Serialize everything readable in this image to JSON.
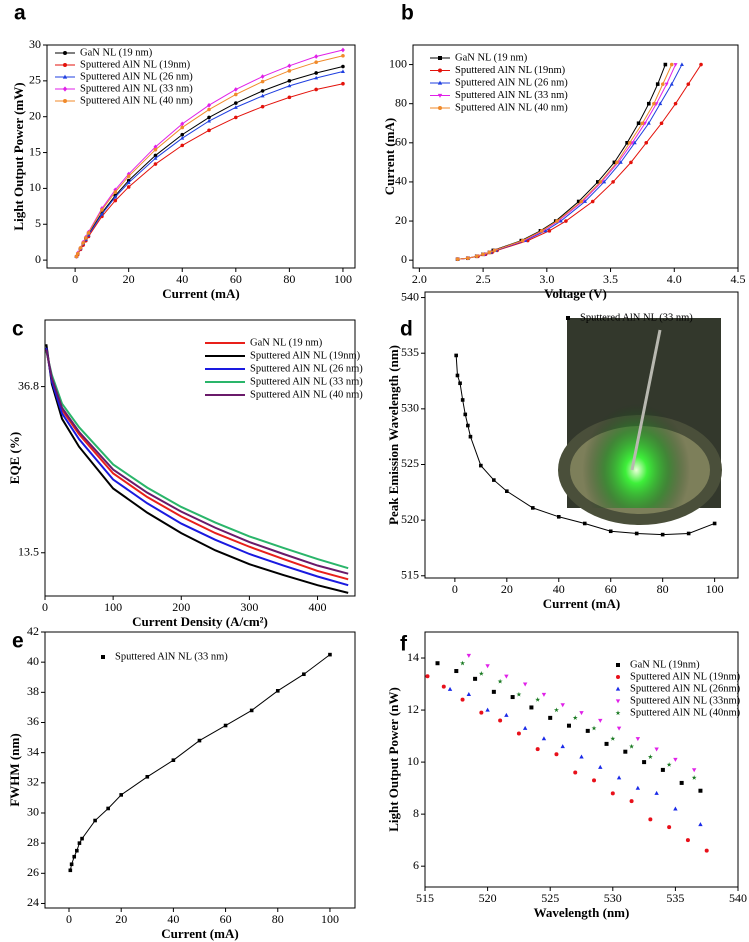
{
  "chart_data": [
    {
      "type": "line",
      "label": "a",
      "xlabel": "Current (mA)",
      "ylabel": "Light Output Power (mW)",
      "x": [
        0.5,
        1,
        2,
        3,
        4,
        5,
        10,
        15,
        20,
        30,
        40,
        50,
        60,
        70,
        80,
        90,
        100
      ],
      "series": [
        {
          "name": "GaN NL (19 nm)",
          "color": "#000000",
          "marker": "circle",
          "values": [
            0.5,
            0.9,
            1.6,
            2.3,
            3.0,
            3.6,
            6.6,
            9.0,
            11.1,
            14.6,
            17.5,
            19.9,
            21.9,
            23.6,
            25.0,
            26.1,
            27.0
          ]
        },
        {
          "name": "Sputtered AlN NL (19nm)",
          "color": "#e3120b",
          "marker": "circle",
          "values": [
            0.5,
            0.8,
            1.5,
            2.1,
            2.7,
            3.3,
            6.1,
            8.3,
            10.2,
            13.4,
            16.0,
            18.1,
            19.9,
            21.4,
            22.7,
            23.8,
            24.6
          ]
        },
        {
          "name": "Sputtered AlN NL (26 nm)",
          "color": "#1f3fe0",
          "marker": "triangle-up",
          "values": [
            0.5,
            0.9,
            1.6,
            2.3,
            2.9,
            3.5,
            6.4,
            8.8,
            10.8,
            14.2,
            17.0,
            19.4,
            21.3,
            22.9,
            24.3,
            25.4,
            26.3
          ]
        },
        {
          "name": "Sputtered AlN NL (33 nm)",
          "color": "#e020e8",
          "marker": "diamond",
          "values": [
            0.5,
            1.0,
            1.7,
            2.5,
            3.2,
            3.9,
            7.2,
            9.8,
            12.0,
            15.8,
            19.0,
            21.6,
            23.8,
            25.6,
            27.1,
            28.4,
            29.3
          ]
        },
        {
          "name": "Sputtered AlN NL (40 nm)",
          "color": "#f08a2a",
          "marker": "circle",
          "values": [
            0.5,
            0.9,
            1.7,
            2.4,
            3.1,
            3.8,
            7.0,
            9.5,
            11.7,
            15.4,
            18.5,
            21.0,
            23.1,
            24.9,
            26.4,
            27.6,
            28.5
          ]
        }
      ],
      "xlim": [
        -10.5,
        104.5
      ],
      "ylim": [
        -1.1,
        30
      ],
      "xticks": [
        0,
        20,
        40,
        60,
        80,
        100
      ],
      "yticks": [
        0,
        5,
        10,
        15,
        20,
        25,
        30
      ],
      "legend": "upper left"
    },
    {
      "type": "line",
      "label": "b",
      "xlabel": "Voltage (V)",
      "ylabel": "Current (mA)",
      "series": [
        {
          "name": "GaN NL (19 nm)",
          "color": "#000000",
          "marker": "square",
          "x": [
            2.3,
            2.38,
            2.45,
            2.5,
            2.55,
            2.58,
            2.8,
            2.95,
            3.07,
            3.25,
            3.4,
            3.53,
            3.63,
            3.72,
            3.8,
            3.87,
            3.93
          ],
          "values": [
            0.5,
            1,
            2,
            3,
            4,
            5,
            10,
            15,
            20,
            30,
            40,
            50,
            60,
            70,
            80,
            90,
            100
          ]
        },
        {
          "name": "Sputtered AlN NL (19nm)",
          "color": "#e3120b",
          "marker": "circle",
          "x": [
            2.3,
            2.38,
            2.46,
            2.52,
            2.57,
            2.61,
            2.85,
            3.02,
            3.15,
            3.36,
            3.52,
            3.66,
            3.78,
            3.9,
            4.01,
            4.11,
            4.21
          ],
          "values": [
            0.5,
            1,
            2,
            3,
            4,
            5,
            10,
            15,
            20,
            30,
            40,
            50,
            60,
            70,
            80,
            90,
            100
          ]
        },
        {
          "name": "Sputtered AlN NL (26 nm)",
          "color": "#1f3fe0",
          "marker": "triangle-up",
          "x": [
            2.3,
            2.38,
            2.45,
            2.51,
            2.56,
            2.6,
            2.83,
            2.99,
            3.11,
            3.3,
            3.45,
            3.58,
            3.69,
            3.8,
            3.89,
            3.98,
            4.06
          ],
          "values": [
            0.5,
            1,
            2,
            3,
            4,
            5,
            10,
            15,
            20,
            30,
            40,
            50,
            60,
            70,
            80,
            90,
            100
          ]
        },
        {
          "name": "Sputtered AlN NL (33 nm)",
          "color": "#e020e8",
          "marker": "triangle-down",
          "x": [
            2.3,
            2.38,
            2.45,
            2.51,
            2.55,
            2.59,
            2.82,
            2.97,
            3.09,
            3.28,
            3.43,
            3.56,
            3.67,
            3.77,
            3.86,
            3.94,
            4.01
          ],
          "values": [
            0.5,
            1,
            2,
            3,
            4,
            5,
            10,
            15,
            20,
            30,
            40,
            50,
            60,
            70,
            80,
            90,
            100
          ]
        },
        {
          "name": "Sputtered AlN NL (40 nm)",
          "color": "#f08a2a",
          "marker": "circle",
          "x": [
            2.3,
            2.38,
            2.45,
            2.5,
            2.55,
            2.59,
            2.81,
            2.96,
            3.08,
            3.27,
            3.42,
            3.55,
            3.65,
            3.75,
            3.84,
            3.91,
            3.98
          ],
          "values": [
            0.5,
            1,
            2,
            3,
            4,
            5,
            10,
            15,
            20,
            30,
            40,
            50,
            60,
            70,
            80,
            90,
            100
          ]
        }
      ],
      "xlim": [
        1.95,
        4.5
      ],
      "ylim": [
        -4,
        110
      ],
      "xticks": [
        {
          "value": 2,
          "label": "2.0"
        },
        2.5,
        {
          "value": 3,
          "label": "3.0"
        },
        3.5,
        {
          "value": 4,
          "label": "4.0"
        },
        4.5
      ],
      "yticks": [
        0,
        20,
        40,
        60,
        80,
        100
      ],
      "legend": "upper left"
    },
    {
      "type": "line",
      "label": "c",
      "xlabel": "Current Density (A/cm²)",
      "ylabel": "EQE (%)",
      "log": true,
      "x": [
        2,
        10,
        25,
        50,
        100,
        150,
        200,
        250,
        300,
        350,
        400,
        445
      ],
      "series": [
        {
          "name": "GaN NL (19 nm)",
          "color": "#e8201a",
          "values": [
            46.0,
            38.5,
            32.0,
            27.6,
            21.8,
            18.9,
            16.8,
            15.2,
            14.0,
            13.0,
            12.1,
            11.5
          ]
        },
        {
          "name": "Sputtered AlN NL (19nm)",
          "color": "#000000",
          "values": [
            47.5,
            37.4,
            30.3,
            25.6,
            19.9,
            17.2,
            15.2,
            13.7,
            12.6,
            11.8,
            11.1,
            10.6
          ]
        },
        {
          "name": "Sputtered AlN NL (26 nm)",
          "color": "#1a1ae0",
          "values": [
            46.5,
            38.0,
            31.3,
            26.8,
            21.0,
            18.2,
            16.1,
            14.6,
            13.4,
            12.5,
            11.7,
            11.1
          ]
        },
        {
          "name": "Sputtered AlN NL (33 nm)",
          "color": "#2ab56a",
          "values": [
            45.5,
            39.5,
            33.2,
            28.8,
            23.0,
            20.0,
            17.8,
            16.2,
            14.9,
            13.9,
            13.0,
            12.3
          ]
        },
        {
          "name": "Sputtered AlN NL (40 nm)",
          "color": "#6a1a6a",
          "values": [
            46.0,
            38.8,
            32.4,
            28.0,
            22.3,
            19.4,
            17.3,
            15.7,
            14.4,
            13.4,
            12.5,
            11.9
          ]
        }
      ],
      "xlim": [
        0,
        455
      ],
      "ylim": [
        10.4,
        55
      ],
      "xticks": [
        0,
        100,
        200,
        300,
        400
      ],
      "yticks": [
        13.5,
        36.8
      ],
      "legend": "upper right"
    },
    {
      "type": "line",
      "label": "d",
      "xlabel": "Current (mA)",
      "ylabel": "Peak Emission Wavelength (nm)",
      "x": [
        0.5,
        1,
        2,
        3,
        4,
        5,
        6,
        10,
        15,
        20,
        30,
        40,
        50,
        60,
        70,
        80,
        90,
        100
      ],
      "series": [
        {
          "name": "Sputtered AlN NL (33 nm)",
          "color": "#000000",
          "marker": "square",
          "values": [
            534.8,
            533.0,
            532.3,
            530.8,
            529.5,
            528.5,
            527.5,
            524.9,
            523.6,
            522.6,
            521.1,
            520.3,
            519.7,
            519.0,
            518.8,
            518.7,
            518.8,
            519.7
          ]
        }
      ],
      "xlim": [
        -11.5,
        109
      ],
      "ylim": [
        514.8,
        540.5
      ],
      "xticks": [
        0,
        20,
        40,
        60,
        80,
        100
      ],
      "yticks": [
        515,
        520,
        525,
        530,
        535,
        540
      ],
      "legend": "upper center"
    },
    {
      "type": "line",
      "label": "e",
      "xlabel": "Current (mA)",
      "ylabel": "FWHM (nm)",
      "x": [
        0.5,
        1,
        2,
        3,
        4,
        5,
        10,
        15,
        20,
        30,
        40,
        50,
        60,
        70,
        80,
        90,
        100
      ],
      "series": [
        {
          "name": "Sputtered AlN NL (33 nm)",
          "color": "#000000",
          "marker": "square",
          "values": [
            26.2,
            26.6,
            27.1,
            27.5,
            28.0,
            28.3,
            29.5,
            30.3,
            31.2,
            32.4,
            33.5,
            34.8,
            35.8,
            36.8,
            38.1,
            39.2,
            40.5
          ]
        }
      ],
      "xlim": [
        -9.2,
        109.6
      ],
      "ylim": [
        23.7,
        42
      ],
      "xticks": [
        0,
        20,
        40,
        60,
        80,
        100
      ],
      "yticks": [
        24,
        26,
        28,
        30,
        32,
        34,
        36,
        38,
        40,
        42
      ],
      "legend": "upper left"
    },
    {
      "type": "scatter",
      "label": "f",
      "xlabel": "Wavelength (nm)",
      "ylabel": "Light Output Power (nW)",
      "series": [
        {
          "name": "GaN NL (19nm)",
          "color": "#000000",
          "marker": "square",
          "x": [
            516,
            517.5,
            519,
            520.5,
            522,
            523.5,
            525,
            526.5,
            528,
            529.5,
            531,
            532.5,
            534,
            535.5,
            537
          ],
          "values": [
            13.8,
            13.5,
            13.2,
            12.7,
            12.5,
            12.1,
            11.7,
            11.4,
            11.2,
            10.7,
            10.4,
            10.0,
            9.7,
            9.2,
            8.9
          ]
        },
        {
          "name": "Sputtered AlN NL (19nm)",
          "color": "#e8101a",
          "marker": "circle",
          "x": [
            515.2,
            516.5,
            518,
            519.5,
            521,
            522.5,
            524,
            525.5,
            527,
            528.5,
            530,
            531.5,
            533,
            534.5,
            536,
            537.5
          ],
          "values": [
            13.3,
            12.9,
            12.4,
            11.9,
            11.6,
            11.1,
            10.5,
            10.3,
            9.6,
            9.3,
            8.8,
            8.5,
            7.8,
            7.5,
            7.0,
            6.6
          ]
        },
        {
          "name": "Sputtered AlN NL (26nm)",
          "color": "#1a2ae8",
          "marker": "triangle-up",
          "x": [
            517,
            518.5,
            520,
            521.5,
            523,
            524.5,
            526,
            527.5,
            529,
            530.5,
            532,
            533.5,
            535,
            537
          ],
          "values": [
            12.8,
            12.6,
            12.0,
            11.8,
            11.3,
            10.9,
            10.6,
            10.2,
            9.8,
            9.4,
            9.0,
            8.8,
            8.2,
            7.6
          ]
        },
        {
          "name": "Sputtered AlN NL (33nm)",
          "color": "#e020e8",
          "marker": "triangle-down",
          "x": [
            518.5,
            520,
            521.5,
            523,
            524.5,
            526,
            527.5,
            529,
            530.5,
            532,
            533.5,
            535,
            536.5
          ],
          "values": [
            14.1,
            13.7,
            13.3,
            13.0,
            12.6,
            12.2,
            11.9,
            11.6,
            11.3,
            10.9,
            10.5,
            10.1,
            9.7
          ]
        },
        {
          "name": "Sputtered AlN NL (40nm)",
          "color": "#1a7a22",
          "marker": "star",
          "x": [
            518,
            519.5,
            521,
            522.5,
            524,
            525.5,
            527,
            528.5,
            530,
            531.5,
            533,
            534.5,
            536.5
          ],
          "values": [
            13.8,
            13.4,
            13.1,
            12.6,
            12.4,
            12.0,
            11.7,
            11.3,
            10.9,
            10.6,
            10.2,
            9.9,
            9.4
          ]
        }
      ],
      "xlim": [
        515,
        540
      ],
      "ylim": [
        5.2,
        15
      ],
      "xticks": [
        515,
        520,
        525,
        530,
        535,
        540
      ],
      "yticks": [
        6,
        8,
        10,
        12,
        14
      ],
      "legend": "upper right"
    }
  ]
}
